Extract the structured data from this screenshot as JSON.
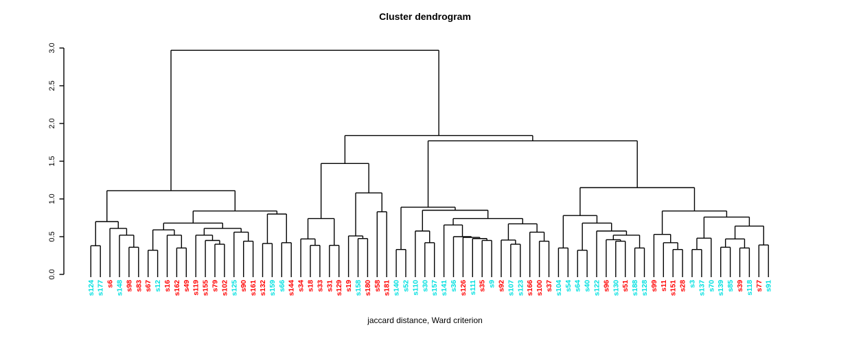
{
  "page": {
    "background": "#ffffff"
  },
  "chart_data": {
    "type": "dendrogram",
    "title": "Cluster dendrogram",
    "xlabel": "jaccard distance, Ward criterion",
    "ylabel": "",
    "ylim": [
      0.0,
      3.0
    ],
    "yticks": [
      "0.0",
      "0.5",
      "1.0",
      "1.5",
      "2.0",
      "2.5",
      "3.0"
    ],
    "grid": false,
    "line_color": "#000000",
    "root_height": 2.97,
    "leaf_color_hex": {
      "cyan": "#00E0E0",
      "red": "#FF0000"
    },
    "leaves": [
      {
        "label": "s124",
        "color": "cyan"
      },
      {
        "label": "s177",
        "color": "cyan"
      },
      {
        "label": "s6",
        "color": "red"
      },
      {
        "label": "s148",
        "color": "cyan"
      },
      {
        "label": "s98",
        "color": "red"
      },
      {
        "label": "s83",
        "color": "red"
      },
      {
        "label": "s67",
        "color": "red"
      },
      {
        "label": "s12",
        "color": "cyan"
      },
      {
        "label": "s16",
        "color": "red"
      },
      {
        "label": "s162",
        "color": "red"
      },
      {
        "label": "s49",
        "color": "red"
      },
      {
        "label": "s119",
        "color": "red"
      },
      {
        "label": "s155",
        "color": "red"
      },
      {
        "label": "s79",
        "color": "red"
      },
      {
        "label": "s102",
        "color": "red"
      },
      {
        "label": "s125",
        "color": "cyan"
      },
      {
        "label": "s90",
        "color": "red"
      },
      {
        "label": "s161",
        "color": "red"
      },
      {
        "label": "s132",
        "color": "red"
      },
      {
        "label": "s159",
        "color": "cyan"
      },
      {
        "label": "s66",
        "color": "cyan"
      },
      {
        "label": "s144",
        "color": "red"
      },
      {
        "label": "s34",
        "color": "red"
      },
      {
        "label": "s18",
        "color": "red"
      },
      {
        "label": "s33",
        "color": "red"
      },
      {
        "label": "s31",
        "color": "red"
      },
      {
        "label": "s129",
        "color": "red"
      },
      {
        "label": "s19",
        "color": "red"
      },
      {
        "label": "s158",
        "color": "cyan"
      },
      {
        "label": "s180",
        "color": "red"
      },
      {
        "label": "s58",
        "color": "red"
      },
      {
        "label": "s181",
        "color": "red"
      },
      {
        "label": "s140",
        "color": "cyan"
      },
      {
        "label": "s52",
        "color": "cyan"
      },
      {
        "label": "s110",
        "color": "cyan"
      },
      {
        "label": "s30",
        "color": "cyan"
      },
      {
        "label": "s157",
        "color": "cyan"
      },
      {
        "label": "s141",
        "color": "cyan"
      },
      {
        "label": "s36",
        "color": "cyan"
      },
      {
        "label": "s126",
        "color": "red"
      },
      {
        "label": "s111",
        "color": "cyan"
      },
      {
        "label": "s35",
        "color": "red"
      },
      {
        "label": "s9",
        "color": "cyan"
      },
      {
        "label": "s92",
        "color": "red"
      },
      {
        "label": "s107",
        "color": "cyan"
      },
      {
        "label": "s123",
        "color": "cyan"
      },
      {
        "label": "s166",
        "color": "red"
      },
      {
        "label": "s100",
        "color": "red"
      },
      {
        "label": "s37",
        "color": "red"
      },
      {
        "label": "s104",
        "color": "cyan"
      },
      {
        "label": "s54",
        "color": "cyan"
      },
      {
        "label": "s64",
        "color": "cyan"
      },
      {
        "label": "s40",
        "color": "cyan"
      },
      {
        "label": "s122",
        "color": "cyan"
      },
      {
        "label": "s96",
        "color": "red"
      },
      {
        "label": "s130",
        "color": "cyan"
      },
      {
        "label": "s51",
        "color": "red"
      },
      {
        "label": "s188",
        "color": "cyan"
      },
      {
        "label": "s128",
        "color": "cyan"
      },
      {
        "label": "s99",
        "color": "red"
      },
      {
        "label": "s11",
        "color": "red"
      },
      {
        "label": "s151",
        "color": "red"
      },
      {
        "label": "s28",
        "color": "red"
      },
      {
        "label": "s3",
        "color": "cyan"
      },
      {
        "label": "s137",
        "color": "cyan"
      },
      {
        "label": "s70",
        "color": "cyan"
      },
      {
        "label": "s139",
        "color": "cyan"
      },
      {
        "label": "s85",
        "color": "cyan"
      },
      {
        "label": "s39",
        "color": "red"
      },
      {
        "label": "s118",
        "color": "cyan"
      },
      {
        "label": "s77",
        "color": "red"
      },
      {
        "label": "s91",
        "color": "cyan"
      }
    ],
    "tree": {
      "h": 2.97,
      "c": [
        {
          "h": 1.11,
          "c": [
            {
              "h": 0.7,
              "c": [
                {
                  "h": 0.38,
                  "c": [
                    "s124",
                    "s177"
                  ]
                },
                {
                  "h": 0.61,
                  "c": [
                    "s6",
                    {
                      "h": 0.52,
                      "c": [
                        "s148",
                        {
                          "h": 0.36,
                          "c": [
                            "s98",
                            "s83"
                          ]
                        }
                      ]
                    }
                  ]
                }
              ]
            },
            {
              "h": 0.84,
              "c": [
                {
                  "h": 0.68,
                  "c": [
                    {
                      "h": 0.59,
                      "c": [
                        {
                          "h": 0.32,
                          "c": [
                            "s67",
                            "s12"
                          ]
                        },
                        {
                          "h": 0.52,
                          "c": [
                            "s16",
                            {
                              "h": 0.35,
                              "c": [
                                "s162",
                                "s49"
                              ]
                            }
                          ]
                        }
                      ]
                    },
                    {
                      "h": 0.61,
                      "c": [
                        {
                          "h": 0.52,
                          "c": [
                            "s119",
                            {
                              "h": 0.45,
                              "c": [
                                "s155",
                                {
                                  "h": 0.4,
                                  "c": [
                                    "s79",
                                    "s102"
                                  ]
                                }
                              ]
                            }
                          ]
                        },
                        {
                          "h": 0.56,
                          "c": [
                            "s125",
                            {
                              "h": 0.44,
                              "c": [
                                "s90",
                                "s161"
                              ]
                            }
                          ]
                        }
                      ]
                    }
                  ]
                },
                {
                  "h": 0.8,
                  "c": [
                    {
                      "h": 0.41,
                      "c": [
                        "s132",
                        "s159"
                      ]
                    },
                    {
                      "h": 0.42,
                      "c": [
                        "s66",
                        "s144"
                      ]
                    }
                  ]
                }
              ]
            }
          ]
        },
        {
          "h": 1.84,
          "c": [
            {
              "h": 1.47,
              "c": [
                {
                  "h": 0.74,
                  "c": [
                    {
                      "h": 0.47,
                      "c": [
                        "s34",
                        {
                          "h": 0.385,
                          "c": [
                            "s18",
                            "s33"
                          ]
                        }
                      ]
                    },
                    {
                      "h": 0.385,
                      "c": [
                        "s31",
                        "s129"
                      ]
                    }
                  ]
                },
                {
                  "h": 1.08,
                  "c": [
                    {
                      "h": 0.51,
                      "c": [
                        "s19",
                        {
                          "h": 0.475,
                          "c": [
                            "s158",
                            "s180"
                          ]
                        }
                      ]
                    },
                    {
                      "h": 0.83,
                      "c": [
                        "s58",
                        "s181"
                      ]
                    }
                  ]
                }
              ]
            },
            {
              "h": 1.77,
              "c": [
                {
                  "h": 0.89,
                  "c": [
                    {
                      "h": 0.33,
                      "c": [
                        "s140",
                        "s52"
                      ]
                    },
                    {
                      "h": 0.85,
                      "c": [
                        {
                          "h": 0.575,
                          "c": [
                            "s110",
                            {
                              "h": 0.42,
                              "c": [
                                "s30",
                                "s157"
                              ]
                            }
                          ]
                        },
                        {
                          "h": 0.74,
                          "c": [
                            {
                              "h": 0.655,
                              "c": [
                                "s141",
                                {
                                  "h": 0.5,
                                  "c": [
                                    "s36",
                                    {
                                      "h": 0.49,
                                      "c": [
                                        "s126",
                                        {
                                          "h": 0.475,
                                          "c": [
                                            "s111",
                                            {
                                              "h": 0.45,
                                              "c": [
                                                "s35",
                                                "s9"
                                              ]
                                            }
                                          ]
                                        }
                                      ]
                                    }
                                  ]
                                }
                              ]
                            },
                            {
                              "h": 0.67,
                              "c": [
                                {
                                  "h": 0.455,
                                  "c": [
                                    "s92",
                                    {
                                      "h": 0.4,
                                      "c": [
                                        "s107",
                                        "s123"
                                      ]
                                    }
                                  ]
                                },
                                {
                                  "h": 0.56,
                                  "c": [
                                    "s166",
                                    {
                                      "h": 0.44,
                                      "c": [
                                        "s100",
                                        "s37"
                                      ]
                                    }
                                  ]
                                }
                              ]
                            }
                          ]
                        }
                      ]
                    }
                  ]
                },
                {
                  "h": 1.15,
                  "c": [
                    {
                      "h": 0.78,
                      "c": [
                        {
                          "h": 0.35,
                          "c": [
                            "s104",
                            "s54"
                          ]
                        },
                        {
                          "h": 0.68,
                          "c": [
                            {
                              "h": 0.32,
                              "c": [
                                "s64",
                                "s40"
                              ]
                            },
                            {
                              "h": 0.575,
                              "c": [
                                "s122",
                                {
                                  "h": 0.52,
                                  "c": [
                                    {
                                      "h": 0.46,
                                      "c": [
                                        "s96",
                                        {
                                          "h": 0.44,
                                          "c": [
                                            "s130",
                                            "s51"
                                          ]
                                        }
                                      ]
                                    },
                                    {
                                      "h": 0.35,
                                      "c": [
                                        "s188",
                                        "s128"
                                      ]
                                    }
                                  ]
                                }
                              ]
                            }
                          ]
                        }
                      ]
                    },
                    {
                      "h": 0.84,
                      "c": [
                        {
                          "h": 0.53,
                          "c": [
                            "s99",
                            {
                              "h": 0.42,
                              "c": [
                                "s11",
                                {
                                  "h": 0.33,
                                  "c": [
                                    "s151",
                                    "s28"
                                  ]
                                }
                              ]
                            }
                          ]
                        },
                        {
                          "h": 0.76,
                          "c": [
                            {
                              "h": 0.48,
                              "c": [
                                {
                                  "h": 0.33,
                                  "c": [
                                    "s3",
                                    "s137"
                                  ]
                                },
                                "s70"
                              ]
                            },
                            {
                              "h": 0.64,
                              "c": [
                                {
                                  "h": 0.47,
                                  "c": [
                                    {
                                      "h": 0.36,
                                      "c": [
                                        "s139",
                                        "s85"
                                      ]
                                    },
                                    {
                                      "h": 0.35,
                                      "c": [
                                        "s39",
                                        "s118"
                                      ]
                                    }
                                  ]
                                },
                                {
                                  "h": 0.39,
                                  "c": [
                                    "s77",
                                    "s91"
                                  ]
                                }
                              ]
                            }
                          ]
                        }
                      ]
                    }
                  ]
                }
              ]
            }
          ]
        }
      ]
    }
  }
}
